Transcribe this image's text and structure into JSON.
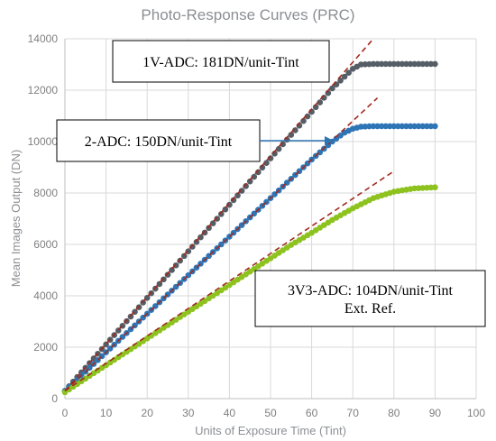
{
  "chart_data": {
    "type": "scatter",
    "title": "Photo-Response Curves (PRC)",
    "xlabel": "Units of Exposure Time (Tint)",
    "ylabel": "Mean Images Output (DN)",
    "xlim": [
      0,
      100
    ],
    "ylim": [
      0,
      14000
    ],
    "xticks": [
      0,
      10,
      20,
      30,
      40,
      50,
      60,
      70,
      80,
      90,
      100
    ],
    "yticks": [
      0,
      2000,
      4000,
      6000,
      8000,
      10000,
      12000,
      14000
    ],
    "grid": true,
    "legend": "none",
    "series": [
      {
        "color": "#555d66",
        "x": [
          0,
          5,
          10,
          15,
          20,
          25,
          30,
          35,
          40,
          45,
          50,
          55,
          60,
          65,
          70,
          72,
          75,
          80,
          85,
          90
        ],
        "values": [
          300,
          1200,
          2110,
          3010,
          3920,
          4820,
          5730,
          6640,
          7540,
          8450,
          9350,
          10260,
          11160,
          12070,
          12830,
          13000,
          13020,
          13020,
          13020,
          13020
        ]
      },
      {
        "color": "#2e75b6",
        "x": [
          0,
          5,
          10,
          15,
          20,
          25,
          30,
          35,
          40,
          45,
          50,
          55,
          60,
          65,
          68,
          70,
          72,
          75,
          80,
          85,
          90
        ],
        "values": [
          300,
          1050,
          1800,
          2550,
          3300,
          4050,
          4800,
          5550,
          6300,
          7050,
          7800,
          8550,
          9300,
          10000,
          10350,
          10500,
          10580,
          10600,
          10600,
          10600,
          10600
        ]
      },
      {
        "color": "#8dc21f",
        "x": [
          0,
          5,
          10,
          15,
          20,
          25,
          30,
          35,
          40,
          45,
          50,
          55,
          60,
          65,
          70,
          75,
          80,
          85,
          90
        ],
        "values": [
          250,
          780,
          1300,
          1820,
          2340,
          2860,
          3380,
          3900,
          4420,
          4940,
          5460,
          5980,
          6450,
          6950,
          7400,
          7800,
          8050,
          8180,
          8220
        ]
      }
    ],
    "fit_lines": [
      {
        "color": "#a02a1e",
        "x": [
          0,
          75
        ],
        "values": [
          300,
          14000
        ]
      },
      {
        "color": "#a02a1e",
        "x": [
          0,
          76
        ],
        "values": [
          300,
          11700
        ]
      },
      {
        "color": "#a02a1e",
        "x": [
          0,
          80
        ],
        "values": [
          300,
          8850
        ]
      }
    ],
    "annotations": [
      {
        "lines": [
          "1V-ADC: 181DN/unit-Tint"
        ]
      },
      {
        "lines": [
          "2-ADC: 150DN/unit-Tint"
        ]
      },
      {
        "lines": [
          "3V3-ADC: 104DN/unit-Tint",
          "Ext. Ref."
        ]
      }
    ],
    "colors": {
      "grid": "#d9d9d9",
      "text": "#8c8f94",
      "tick": "#7f7f7f",
      "arrow": "#2e75b6"
    }
  }
}
